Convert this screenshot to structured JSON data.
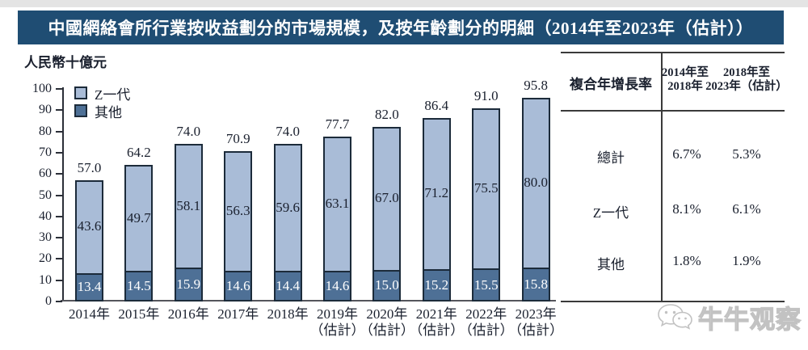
{
  "title": "中國網絡會所行業按收益劃分的市場規模，及按年齡劃分的明細（2014年至2023年（估計））",
  "chart_data": {
    "type": "bar",
    "stacked": true,
    "unit_label": "人民幣十億元",
    "ylim": [
      0,
      100
    ],
    "yticks": [
      0,
      10,
      20,
      30,
      40,
      50,
      60,
      70,
      80,
      90,
      100
    ],
    "grid": false,
    "legend_position": "top-left",
    "categories": [
      {
        "label": "2014年",
        "note": ""
      },
      {
        "label": "2015年",
        "note": ""
      },
      {
        "label": "2016年",
        "note": ""
      },
      {
        "label": "2017年",
        "note": ""
      },
      {
        "label": "2018年",
        "note": ""
      },
      {
        "label": "2019年",
        "note": "（估計）"
      },
      {
        "label": "2020年",
        "note": "（估計）"
      },
      {
        "label": "2021年",
        "note": "（估計）"
      },
      {
        "label": "2022年",
        "note": "（估計）"
      },
      {
        "label": "2023年",
        "note": "（估計）"
      }
    ],
    "series": [
      {
        "name": "Z一代",
        "color": "#a9bcd7",
        "values": [
          "43.6",
          "49.7",
          "58.1",
          "56.3",
          "59.6",
          "63.1",
          "67.0",
          "71.2",
          "75.5",
          "80.0"
        ]
      },
      {
        "name": "其他",
        "color": "#4e7096",
        "values": [
          "13.4",
          "14.5",
          "15.9",
          "14.6",
          "14.4",
          "14.6",
          "15.0",
          "15.2",
          "15.5",
          "15.8"
        ]
      }
    ],
    "totals": [
      "57.0",
      "64.2",
      "74.0",
      "70.9",
      "74.0",
      "77.7",
      "82.0",
      "86.4",
      "91.0",
      "95.8"
    ]
  },
  "cagr_table": {
    "header": "複合年增長率",
    "col_headers": [
      {
        "line1": "2014年至",
        "line2": "2018年"
      },
      {
        "line1": "2018年至",
        "line2": "2023年（估計）"
      }
    ],
    "rows": [
      {
        "label": "總計",
        "v1": "6.7%",
        "v2": "5.3%"
      },
      {
        "label": "Z一代",
        "v1": "8.1%",
        "v2": "6.1%"
      },
      {
        "label": "其他",
        "v1": "1.8%",
        "v2": "1.9%"
      }
    ]
  },
  "watermark": {
    "text": "牛牛观察",
    "icon": "wechat-icon"
  },
  "colors": {
    "title_bar": "#1f4d73",
    "bar_gen_z": "#a9bcd7",
    "bar_other": "#4e7096",
    "bar_border": "#1c2b3a",
    "watermark_gray": "#c2c2c2"
  }
}
